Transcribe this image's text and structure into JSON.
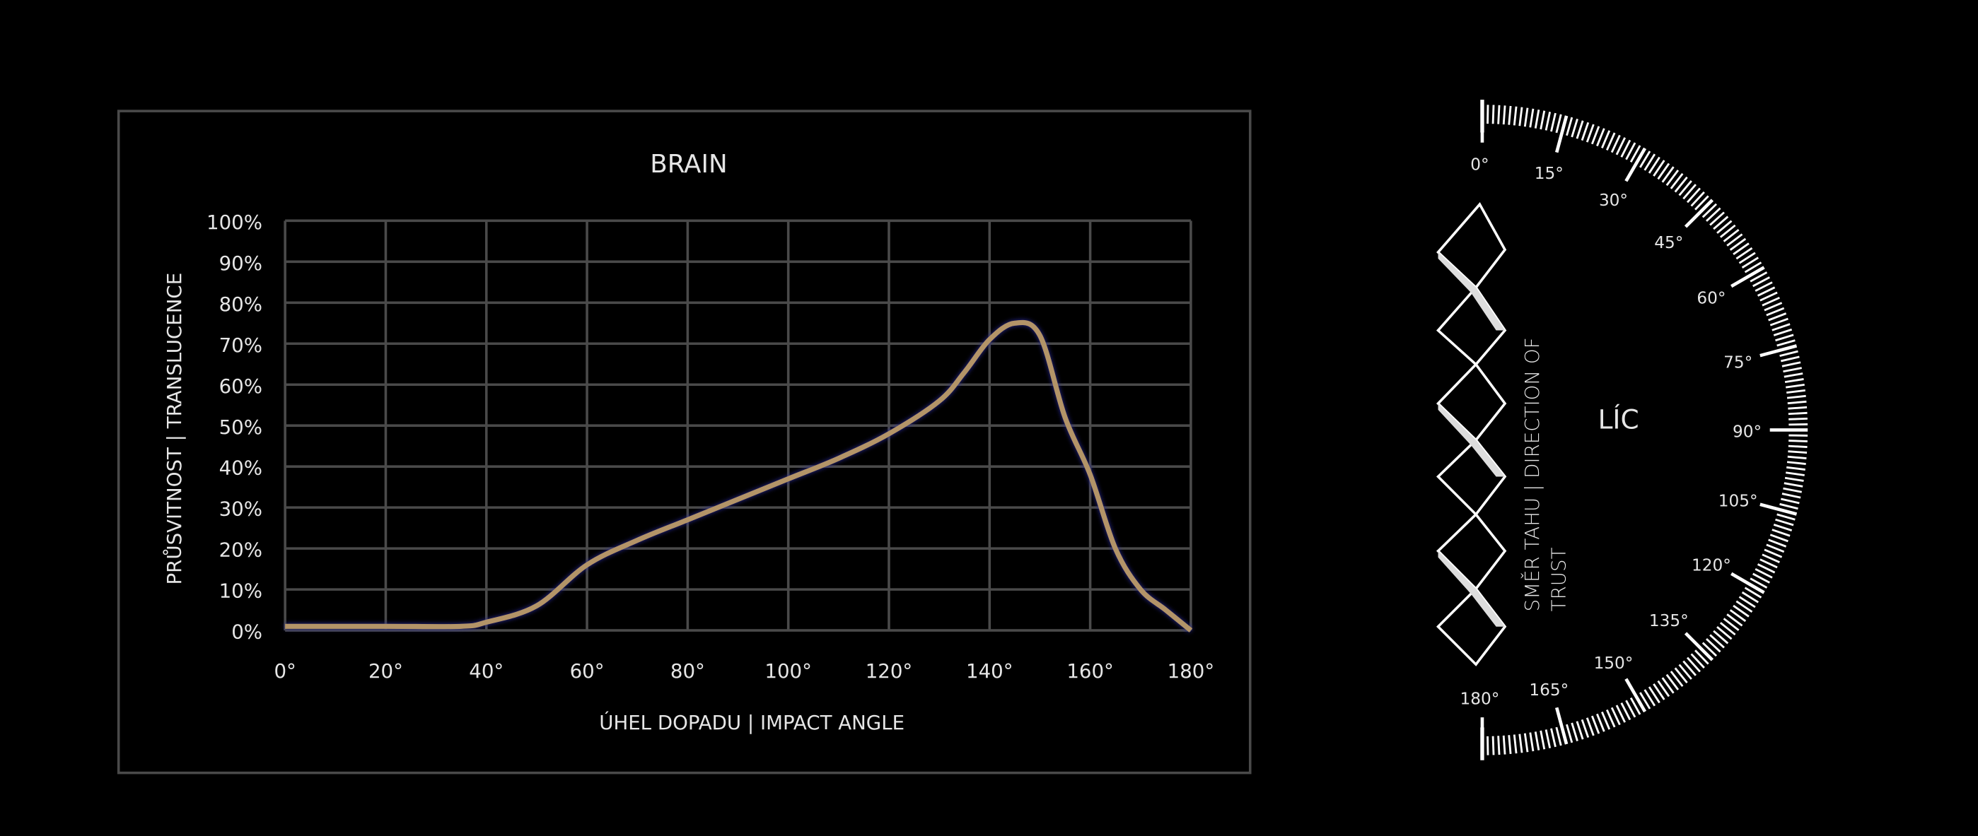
{
  "chart_data": {
    "type": "line",
    "title": "BRAIN",
    "x_label": "ÚHEL DOPADU | IMPACT ANGLE",
    "y_label": "PRŮSVITNOST | TRANSLUCENCE",
    "x": [
      0,
      20,
      35,
      40,
      50,
      60,
      70,
      80,
      90,
      100,
      110,
      120,
      130,
      135,
      140,
      145,
      150,
      155,
      160,
      165,
      170,
      175,
      180
    ],
    "series": [
      {
        "color": "#b39468",
        "values": [
          1,
          1,
          1,
          2,
          6,
          16,
          22,
          27,
          32,
          37,
          42,
          48,
          56,
          63,
          71,
          75,
          72,
          52,
          38,
          20,
          10,
          5,
          0
        ]
      }
    ],
    "xlim": [
      0,
      180
    ],
    "ylim": [
      0,
      100
    ],
    "xticks": [
      {
        "value": 0,
        "label": "0°"
      },
      {
        "value": 20,
        "label": "20°"
      },
      {
        "value": 40,
        "label": "40°"
      },
      {
        "value": 60,
        "label": "60°"
      },
      {
        "value": 80,
        "label": "80°"
      },
      {
        "value": 100,
        "label": "100°"
      },
      {
        "value": 120,
        "label": "120°"
      },
      {
        "value": 140,
        "label": "140°"
      },
      {
        "value": 160,
        "label": "160°"
      },
      {
        "value": 180,
        "label": "180°"
      }
    ],
    "yticks": [
      {
        "value": 0,
        "label": "0%"
      },
      {
        "value": 10,
        "label": "10%"
      },
      {
        "value": 20,
        "label": "20%"
      },
      {
        "value": 30,
        "label": "30%"
      },
      {
        "value": 40,
        "label": "40%"
      },
      {
        "value": 50,
        "label": "50%"
      },
      {
        "value": 60,
        "label": "60%"
      },
      {
        "value": 70,
        "label": "70%"
      },
      {
        "value": 80,
        "label": "80%"
      },
      {
        "value": 90,
        "label": "90%"
      },
      {
        "value": 100,
        "label": "100%"
      }
    ],
    "grid": true
  },
  "protractor": {
    "center_label": "LÍC",
    "side_label": "SMĚR TAHU | DIRECTION OF TRUST",
    "angle_labels": [
      "0°",
      "15°",
      "30°",
      "45°",
      "60°",
      "75°",
      "90°",
      "105°",
      "120°",
      "135°",
      "150°",
      "165°",
      "180°"
    ]
  }
}
